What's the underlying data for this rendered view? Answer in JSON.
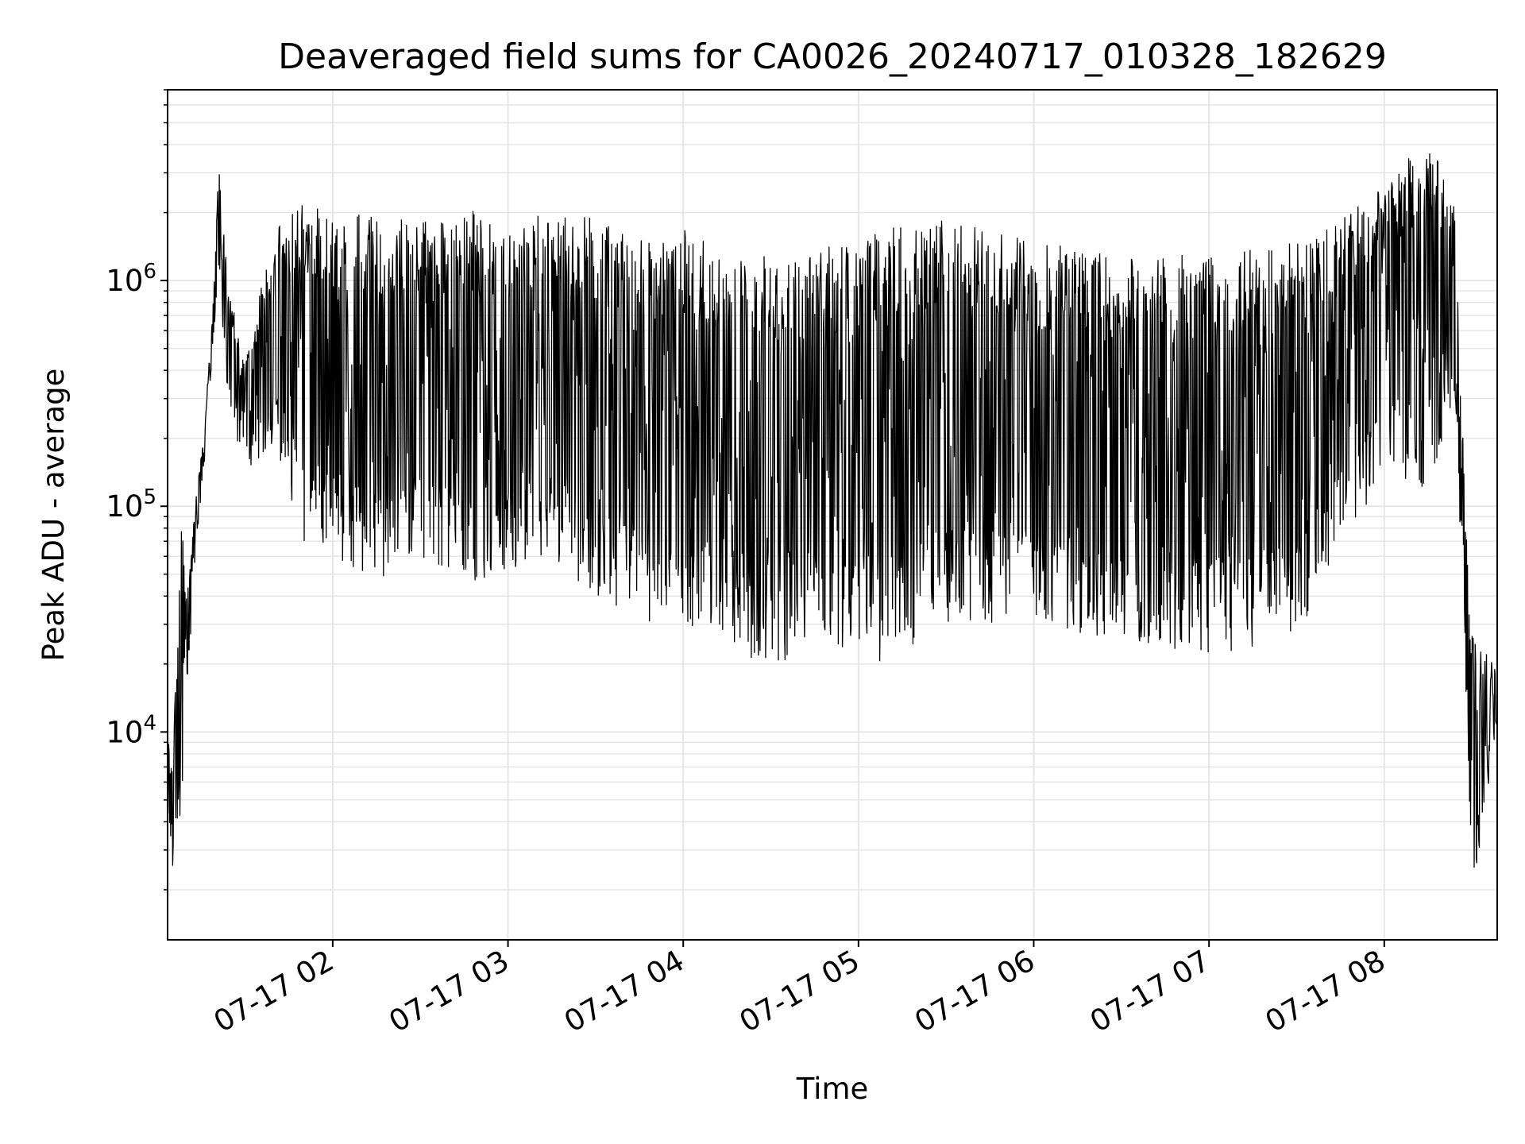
{
  "chart_data": {
    "type": "line",
    "title": "Deaveraged field sums for CA0026_20240717_010328_182629",
    "xlabel": "Time",
    "ylabel": "Peak ADU - average",
    "x_ticks": [
      "07-17 02",
      "07-17 03",
      "07-17 04",
      "07-17 05",
      "07-17 06",
      "07-17 07",
      "07-17 08"
    ],
    "x_tick_hours": [
      2,
      3,
      4,
      5,
      6,
      7,
      8
    ],
    "x_range": [
      "2024-07-17 01:03:28",
      "2024-07-17 08:38:40"
    ],
    "y_scale": "log",
    "y_ticks": [
      {
        "base": "10",
        "exp": "4",
        "value": 10000
      },
      {
        "base": "10",
        "exp": "5",
        "value": 100000
      },
      {
        "base": "10",
        "exp": "6",
        "value": 1000000
      }
    ],
    "ylim": [
      1200,
      7000000
    ],
    "grid": true,
    "line_color": "#000000",
    "grid_color": "#e6e6e6",
    "series": [
      {
        "envelope": [
          {
            "t": "01:03:40",
            "lo": 3500,
            "hi": 11000
          },
          {
            "t": "01:05:30",
            "lo": 1800,
            "hi": 8000
          },
          {
            "t": "01:08:00",
            "lo": 3700,
            "hi": 140000
          },
          {
            "t": "01:10:00",
            "lo": 14000,
            "hi": 40000
          },
          {
            "t": "01:13:00",
            "lo": 60000,
            "hi": 110000
          },
          {
            "t": "01:16:00",
            "lo": 150000,
            "hi": 210000
          },
          {
            "t": "01:19:00",
            "lo": 500000,
            "hi": 800000
          },
          {
            "t": "01:21:00",
            "lo": 1100000,
            "hi": 3600000
          },
          {
            "t": "01:24:00",
            "lo": 300000,
            "hi": 1000000
          },
          {
            "t": "01:30:00",
            "lo": 140000,
            "hi": 450000
          },
          {
            "t": "01:40:00",
            "lo": 170000,
            "hi": 1700000
          },
          {
            "t": "01:50:00",
            "lo": 70000,
            "hi": 2300000
          },
          {
            "t": "02:00:00",
            "lo": 60000,
            "hi": 1900000
          },
          {
            "t": "02:15:00",
            "lo": 45000,
            "hi": 2000000
          },
          {
            "t": "02:30:00",
            "lo": 60000,
            "hi": 1800000
          },
          {
            "t": "02:45:00",
            "lo": 45000,
            "hi": 2100000
          },
          {
            "t": "03:00:00",
            "lo": 50000,
            "hi": 1800000
          },
          {
            "t": "03:15:00",
            "lo": 55000,
            "hi": 2000000
          },
          {
            "t": "03:30:00",
            "lo": 35000,
            "hi": 1900000
          },
          {
            "t": "03:45:00",
            "lo": 30000,
            "hi": 1500000
          },
          {
            "t": "04:00:00",
            "lo": 30000,
            "hi": 1700000
          },
          {
            "t": "04:15:00",
            "lo": 25000,
            "hi": 1300000
          },
          {
            "t": "04:30:00",
            "lo": 18000,
            "hi": 1300000
          },
          {
            "t": "04:45:00",
            "lo": 24000,
            "hi": 1400000
          },
          {
            "t": "05:00:00",
            "lo": 22000,
            "hi": 1500000
          },
          {
            "t": "05:10:00",
            "lo": 18000,
            "hi": 1700000
          },
          {
            "t": "05:30:00",
            "lo": 30000,
            "hi": 1900000
          },
          {
            "t": "06:00:00",
            "lo": 30000,
            "hi": 1500000
          },
          {
            "t": "06:30:00",
            "lo": 25000,
            "hi": 1300000
          },
          {
            "t": "07:00:00",
            "lo": 22000,
            "hi": 1300000
          },
          {
            "t": "07:30:00",
            "lo": 25000,
            "hi": 1500000
          },
          {
            "t": "07:45:00",
            "lo": 70000,
            "hi": 2000000
          },
          {
            "t": "08:00:00",
            "lo": 130000,
            "hi": 2600000
          },
          {
            "t": "08:15:00",
            "lo": 120000,
            "hi": 4500000
          },
          {
            "t": "08:24:00",
            "lo": 300000,
            "hi": 2100000
          },
          {
            "t": "08:27:00",
            "lo": 40000,
            "hi": 200000
          },
          {
            "t": "08:30:00",
            "lo": 2000,
            "hi": 30000
          },
          {
            "t": "08:32:00",
            "lo": 2500,
            "hi": 25000
          },
          {
            "t": "08:38:40",
            "lo": 11000,
            "hi": 20000
          }
        ]
      }
    ]
  }
}
